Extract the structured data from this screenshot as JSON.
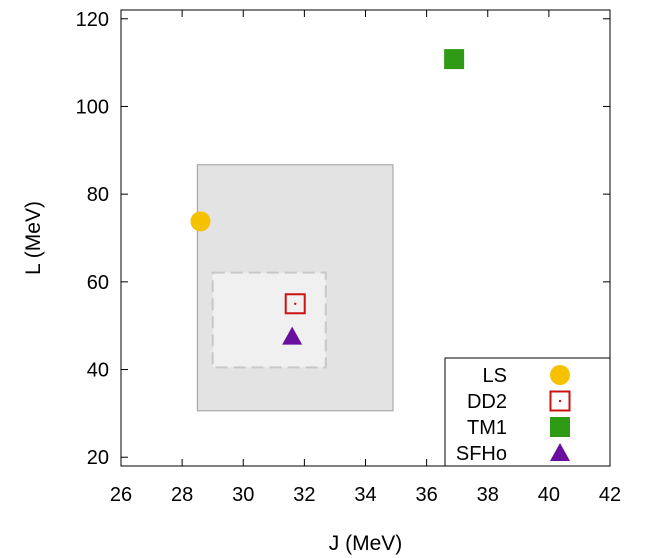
{
  "chart_data": {
    "type": "scatter",
    "xlabel": "J (MeV)",
    "ylabel": "L (MeV)",
    "xlim": [
      26,
      42
    ],
    "ylim": [
      18,
      122
    ],
    "xticks": [
      "26",
      "28",
      "30",
      "32",
      "34",
      "36",
      "38",
      "40",
      "42"
    ],
    "yticks": [
      "20",
      "40",
      "60",
      "80",
      "100",
      "120"
    ],
    "xtick_values": [
      26,
      28,
      30,
      32,
      34,
      36,
      38,
      40,
      42
    ],
    "ytick_values": [
      20,
      40,
      60,
      80,
      100,
      120
    ],
    "grid": false,
    "legend_position": "bottom-right",
    "regions": [
      {
        "x": [
          28.5,
          34.9
        ],
        "y": [
          30.6,
          86.7
        ],
        "fill": "#e3e3e3",
        "stroke": "#aaaaaa",
        "dashed": false
      },
      {
        "x": [
          29.0,
          32.7
        ],
        "y": [
          40.5,
          62.1
        ],
        "fill": "#f0f0f0",
        "stroke": "#c8c8c8",
        "dashed": true
      }
    ],
    "series": [
      {
        "name": "LS",
        "marker": "circle",
        "color": "#f5c100",
        "x": 28.6,
        "y": 73.8
      },
      {
        "name": "DD2",
        "marker": "open-square-dot",
        "color": "#cc1111",
        "x": 31.7,
        "y": 55.0
      },
      {
        "name": "TM1",
        "marker": "square",
        "color": "#2e9a16",
        "x": 36.9,
        "y": 110.8
      },
      {
        "name": "SFHo",
        "marker": "triangle",
        "color": "#6a0ea0",
        "x": 31.6,
        "y": 47.5
      }
    ]
  }
}
